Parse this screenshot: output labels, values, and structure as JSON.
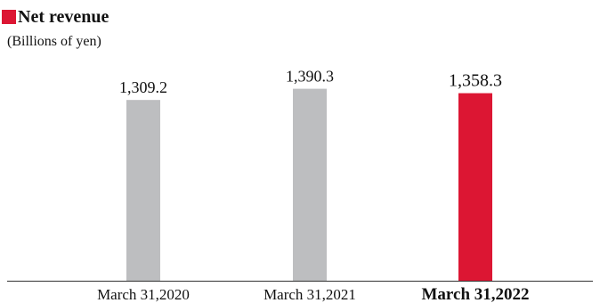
{
  "chart_data": {
    "type": "bar",
    "title": "Net revenue",
    "unit_label": "(Billions of yen)",
    "categories": [
      "March 31,2020",
      "March 31,2021",
      "March 31,2022"
    ],
    "values": [
      1309.2,
      1390.3,
      1358.3
    ],
    "value_labels": [
      "1,309.2",
      "1,390.3",
      "1,358.3"
    ],
    "highlight_index": 2,
    "colors": {
      "default_bar": "#bdbec0",
      "highlight_bar": "#dc1633",
      "title_marker": "#dc1633",
      "axis": "#333333"
    },
    "ylim": [
      0,
      1420
    ],
    "xlabel": "",
    "ylabel": "",
    "grid": false,
    "legend": "none"
  }
}
